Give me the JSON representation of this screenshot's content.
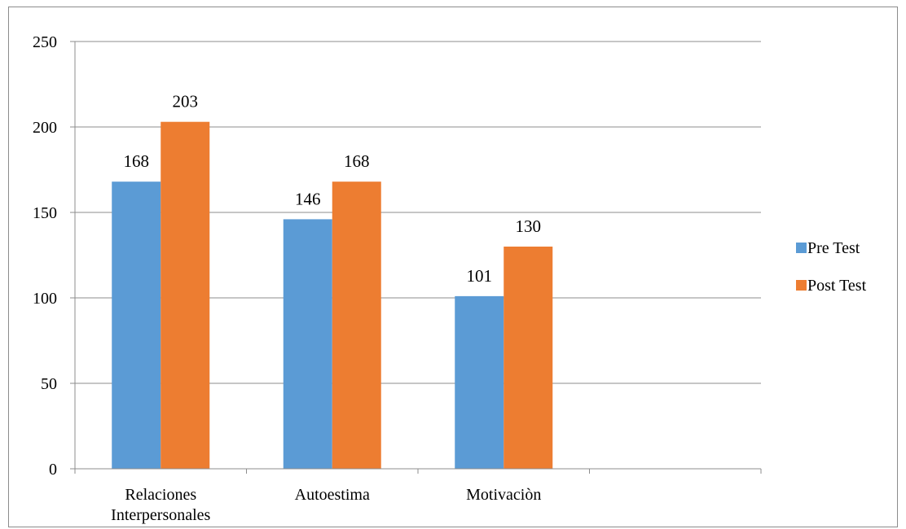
{
  "chart_data": {
    "type": "bar",
    "categories": [
      [
        "Relaciones",
        "Interpersonales"
      ],
      [
        "Autoestima"
      ],
      [
        "Motivaciòn"
      ],
      [
        ""
      ]
    ],
    "series": [
      {
        "name": "Pre Test",
        "color": "#5b9bd5",
        "values": [
          168,
          146,
          101,
          null
        ]
      },
      {
        "name": "Post Test",
        "color": "#ed7d31",
        "values": [
          203,
          168,
          130,
          null
        ]
      }
    ],
    "yticks": [
      "0",
      "50",
      "100",
      "150",
      "200",
      "250"
    ],
    "ylim": [
      0,
      250
    ],
    "grid": true,
    "legend": "right"
  }
}
